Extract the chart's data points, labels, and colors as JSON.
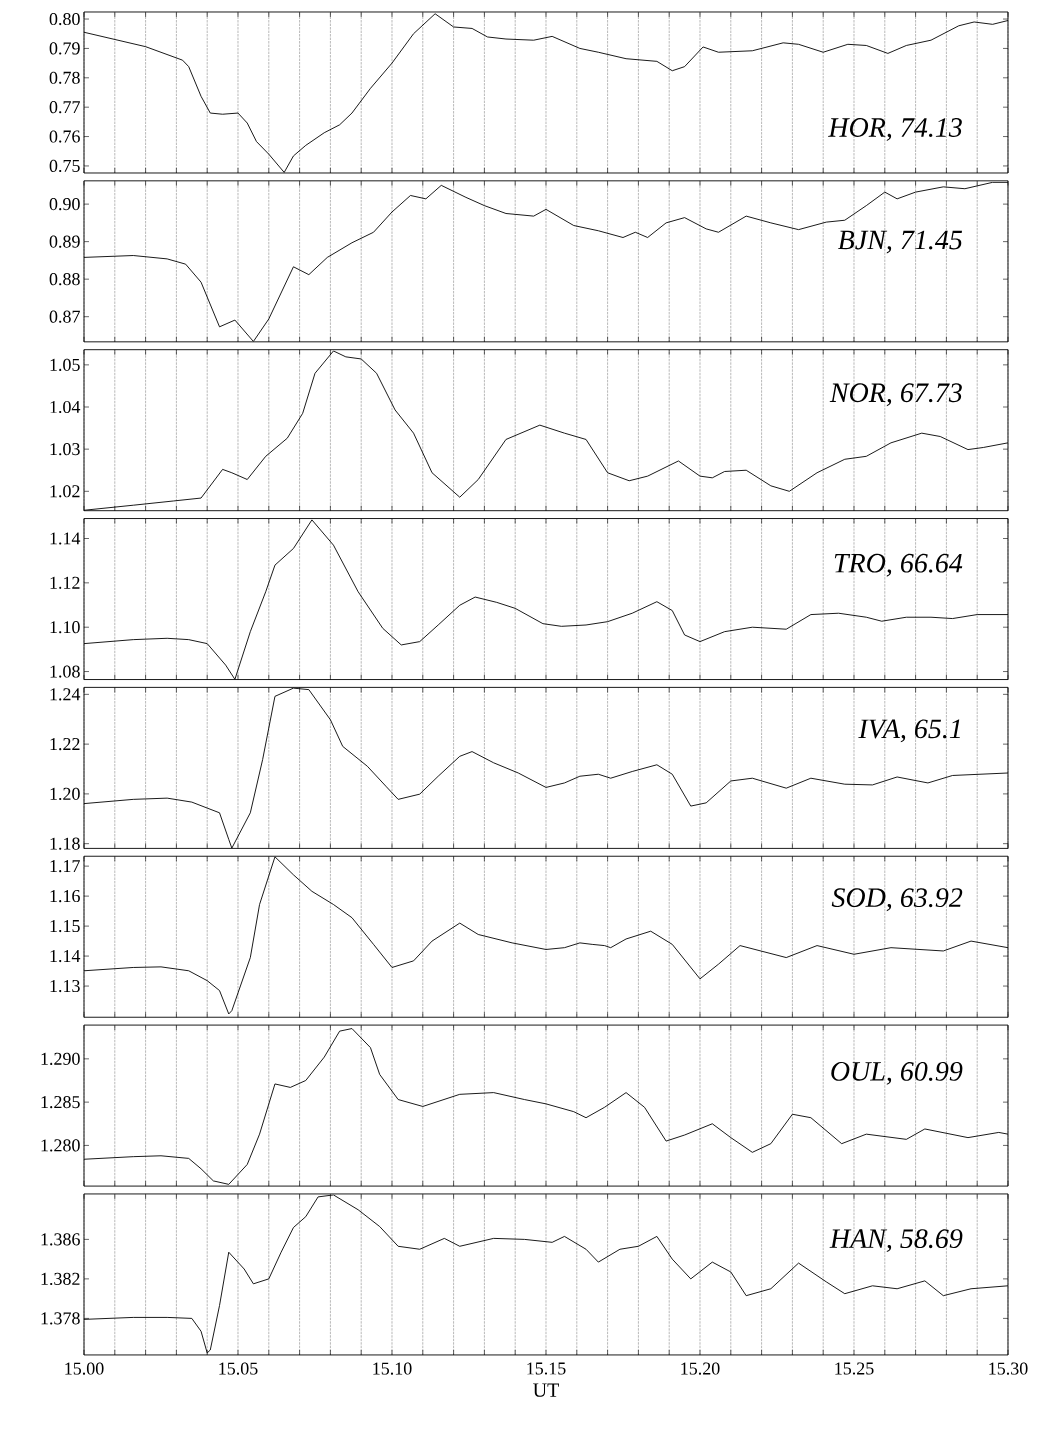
{
  "chart_data": [
    {
      "type": "line",
      "color": "#000000",
      "annotations": [
        "HOR, 74.13"
      ],
      "grid": "x",
      "tick_labels": "y",
      "xlim": [
        15.0,
        15.3
      ],
      "ylim": [
        0.7476,
        0.8024
      ],
      "xticks": [
        15.0,
        15.01,
        15.02,
        15.03,
        15.04,
        15.05,
        15.06,
        15.07,
        15.08,
        15.09,
        15.1,
        15.11,
        15.12,
        15.13,
        15.14,
        15.15,
        15.16,
        15.17,
        15.18,
        15.19,
        15.2,
        15.21,
        15.22,
        15.23,
        15.24,
        15.25,
        15.26,
        15.27,
        15.28,
        15.29,
        15.3
      ],
      "yticks": [
        {
          "value": 0.75,
          "label": "0.75"
        },
        {
          "value": 0.76,
          "label": "0.76"
        },
        {
          "value": 0.77,
          "label": "0.77"
        },
        {
          "value": 0.78,
          "label": "0.78"
        },
        {
          "value": 0.79,
          "label": "0.79"
        },
        {
          "value": 0.8,
          "label": "0.80"
        }
      ],
      "x": [
        15.0,
        15.02,
        15.032,
        15.034,
        15.038,
        15.041,
        15.045,
        15.05,
        15.053,
        15.056,
        15.06,
        15.065,
        15.068,
        15.072,
        15.078,
        15.083,
        15.087,
        15.093,
        15.1,
        15.107,
        15.114,
        15.12,
        15.126,
        15.131,
        15.137,
        15.146,
        15.152,
        15.161,
        15.167,
        15.176,
        15.186,
        15.191,
        15.195,
        15.201,
        15.206,
        15.217,
        15.227,
        15.232,
        15.24,
        15.248,
        15.254,
        15.261,
        15.267,
        15.275,
        15.284,
        15.289,
        15.295,
        15.3
      ],
      "values": [
        0.7955,
        0.7906,
        0.786,
        0.7838,
        0.7737,
        0.768,
        0.7676,
        0.768,
        0.7646,
        0.7583,
        0.754,
        0.7478,
        0.7534,
        0.757,
        0.7613,
        0.764,
        0.768,
        0.7764,
        0.785,
        0.795,
        0.8018,
        0.7973,
        0.7968,
        0.7939,
        0.7932,
        0.7928,
        0.7941,
        0.79,
        0.7887,
        0.7865,
        0.7856,
        0.7824,
        0.7838,
        0.7905,
        0.7887,
        0.7892,
        0.7919,
        0.7914,
        0.7887,
        0.7914,
        0.791,
        0.7883,
        0.791,
        0.7928,
        0.7977,
        0.799,
        0.7982,
        0.7995
      ]
    },
    {
      "type": "line",
      "color": "#000000",
      "annotations": [
        "BJN, 71.45"
      ],
      "grid": "x",
      "tick_labels": "y",
      "xlim": [
        15.0,
        15.3
      ],
      "ylim": [
        0.8633,
        0.9062
      ],
      "xticks": [
        15.0,
        15.01,
        15.02,
        15.03,
        15.04,
        15.05,
        15.06,
        15.07,
        15.08,
        15.09,
        15.1,
        15.11,
        15.12,
        15.13,
        15.14,
        15.15,
        15.16,
        15.17,
        15.18,
        15.19,
        15.2,
        15.21,
        15.22,
        15.23,
        15.24,
        15.25,
        15.26,
        15.27,
        15.28,
        15.29,
        15.3
      ],
      "yticks": [
        {
          "value": 0.87,
          "label": "0.87"
        },
        {
          "value": 0.88,
          "label": "0.88"
        },
        {
          "value": 0.89,
          "label": "0.89"
        },
        {
          "value": 0.9,
          "label": "0.90"
        }
      ],
      "x": [
        15.0,
        15.016,
        15.027,
        15.033,
        15.038,
        15.044,
        15.049,
        15.055,
        15.06,
        15.068,
        15.073,
        15.079,
        15.087,
        15.094,
        15.1,
        15.106,
        15.111,
        15.116,
        15.124,
        15.13,
        15.137,
        15.146,
        15.15,
        15.159,
        15.167,
        15.175,
        15.179,
        15.183,
        15.189,
        15.195,
        15.202,
        15.206,
        15.215,
        15.223,
        15.232,
        15.241,
        15.247,
        15.254,
        15.26,
        15.264,
        15.27,
        15.279,
        15.286,
        15.295,
        15.3
      ],
      "values": [
        0.8858,
        0.8863,
        0.8854,
        0.884,
        0.8792,
        0.8673,
        0.8691,
        0.8634,
        0.8694,
        0.8833,
        0.8812,
        0.8858,
        0.8897,
        0.8925,
        0.8979,
        0.9023,
        0.9014,
        0.905,
        0.9018,
        0.8996,
        0.8975,
        0.8968,
        0.8986,
        0.8943,
        0.8929,
        0.8911,
        0.8925,
        0.8911,
        0.895,
        0.8964,
        0.8934,
        0.8925,
        0.8968,
        0.895,
        0.8932,
        0.8952,
        0.8957,
        0.8996,
        0.9032,
        0.9014,
        0.9032,
        0.9046,
        0.9041,
        0.9058,
        0.9058
      ]
    },
    {
      "type": "line",
      "color": "#000000",
      "annotations": [
        "NOR, 67.73"
      ],
      "grid": "x",
      "tick_labels": "y",
      "xlim": [
        15.0,
        15.3
      ],
      "ylim": [
        1.0154,
        1.0536
      ],
      "xticks": [
        15.0,
        15.01,
        15.02,
        15.03,
        15.04,
        15.05,
        15.06,
        15.07,
        15.08,
        15.09,
        15.1,
        15.11,
        15.12,
        15.13,
        15.14,
        15.15,
        15.16,
        15.17,
        15.18,
        15.19,
        15.2,
        15.21,
        15.22,
        15.23,
        15.24,
        15.25,
        15.26,
        15.27,
        15.28,
        15.29,
        15.3
      ],
      "yticks": [
        {
          "value": 1.02,
          "label": "1.02"
        },
        {
          "value": 1.03,
          "label": "1.03"
        },
        {
          "value": 1.04,
          "label": "1.04"
        },
        {
          "value": 1.05,
          "label": "1.05"
        }
      ],
      "x": [
        15.0,
        15.016,
        15.029,
        15.038,
        15.045,
        15.048,
        15.053,
        15.059,
        15.066,
        15.071,
        15.075,
        15.081,
        15.085,
        15.09,
        15.095,
        15.101,
        15.107,
        15.113,
        15.122,
        15.128,
        15.137,
        15.148,
        15.156,
        15.163,
        15.17,
        15.177,
        15.183,
        15.193,
        15.2,
        15.204,
        15.208,
        15.215,
        15.223,
        15.229,
        15.238,
        15.247,
        15.254,
        15.262,
        15.272,
        15.278,
        15.287,
        15.292,
        15.3
      ],
      "values": [
        1.0155,
        1.0167,
        1.0177,
        1.0184,
        1.0252,
        1.0244,
        1.0228,
        1.0283,
        1.0326,
        1.0385,
        1.048,
        1.0533,
        1.0519,
        1.0514,
        1.048,
        1.0393,
        1.0338,
        1.0244,
        1.0186,
        1.0228,
        1.0323,
        1.0357,
        1.0338,
        1.0323,
        1.0244,
        1.0225,
        1.0236,
        1.0272,
        1.0236,
        1.0232,
        1.0247,
        1.025,
        1.0213,
        1.02,
        1.0244,
        1.0276,
        1.0283,
        1.0315,
        1.0338,
        1.033,
        1.0299,
        1.0304,
        1.0315
      ]
    },
    {
      "type": "line",
      "color": "#000000",
      "annotations": [
        "TRO, 66.64"
      ],
      "grid": "x",
      "tick_labels": "y",
      "xlim": [
        15.0,
        15.3
      ],
      "ylim": [
        1.0764,
        1.149
      ],
      "xticks": [
        15.0,
        15.01,
        15.02,
        15.03,
        15.04,
        15.05,
        15.06,
        15.07,
        15.08,
        15.09,
        15.1,
        15.11,
        15.12,
        15.13,
        15.14,
        15.15,
        15.16,
        15.17,
        15.18,
        15.19,
        15.2,
        15.21,
        15.22,
        15.23,
        15.24,
        15.25,
        15.26,
        15.27,
        15.28,
        15.29,
        15.3
      ],
      "yticks": [
        {
          "value": 1.08,
          "label": "1.08"
        },
        {
          "value": 1.1,
          "label": "1.10"
        },
        {
          "value": 1.12,
          "label": "1.12"
        },
        {
          "value": 1.14,
          "label": "1.14"
        }
      ],
      "x": [
        15.0,
        15.016,
        15.027,
        15.034,
        15.04,
        15.046,
        15.049,
        15.054,
        15.059,
        15.062,
        15.068,
        15.074,
        15.081,
        15.089,
        15.097,
        15.103,
        15.109,
        15.115,
        15.122,
        15.127,
        15.134,
        15.14,
        15.149,
        15.155,
        15.163,
        15.17,
        15.178,
        15.186,
        15.191,
        15.195,
        15.2,
        15.208,
        15.217,
        15.228,
        15.236,
        15.245,
        15.254,
        15.259,
        15.267,
        15.275,
        15.282,
        15.29,
        15.3
      ],
      "values": [
        1.0926,
        1.0944,
        1.095,
        1.0944,
        1.0926,
        1.0829,
        1.0765,
        1.098,
        1.116,
        1.128,
        1.1355,
        1.1484,
        1.137,
        1.116,
        1.0995,
        1.092,
        1.0935,
        1.101,
        1.1099,
        1.1136,
        1.1112,
        1.1085,
        1.1016,
        1.1004,
        1.101,
        1.1025,
        1.1063,
        1.1115,
        1.1075,
        1.0965,
        1.0935,
        1.098,
        1.1,
        1.0991,
        1.1057,
        1.1063,
        1.1045,
        1.1027,
        1.1045,
        1.1045,
        1.1039,
        1.1057,
        1.1057
      ]
    },
    {
      "type": "line",
      "color": "#000000",
      "annotations": [
        "IVA, 65.1"
      ],
      "grid": "x",
      "tick_labels": "y",
      "xlim": [
        15.0,
        15.3
      ],
      "ylim": [
        1.1781,
        1.2428
      ],
      "xticks": [
        15.0,
        15.01,
        15.02,
        15.03,
        15.04,
        15.05,
        15.06,
        15.07,
        15.08,
        15.09,
        15.1,
        15.11,
        15.12,
        15.13,
        15.14,
        15.15,
        15.16,
        15.17,
        15.18,
        15.19,
        15.2,
        15.21,
        15.22,
        15.23,
        15.24,
        15.25,
        15.26,
        15.27,
        15.28,
        15.29,
        15.3
      ],
      "yticks": [
        {
          "value": 1.18,
          "label": "1.18"
        },
        {
          "value": 1.2,
          "label": "1.20"
        },
        {
          "value": 1.22,
          "label": "1.22"
        },
        {
          "value": 1.24,
          "label": "1.24"
        }
      ],
      "x": [
        15.0,
        15.016,
        15.027,
        15.035,
        15.04,
        15.044,
        15.047,
        15.048,
        15.054,
        15.058,
        15.062,
        15.068,
        15.073,
        15.08,
        15.084,
        15.092,
        15.098,
        15.102,
        15.109,
        15.115,
        15.122,
        15.126,
        15.133,
        15.141,
        15.15,
        15.156,
        15.161,
        15.167,
        15.171,
        15.178,
        15.186,
        15.191,
        15.197,
        15.202,
        15.21,
        15.217,
        15.228,
        15.236,
        15.247,
        15.256,
        15.264,
        15.274,
        15.282,
        15.3
      ],
      "values": [
        1.1961,
        1.1978,
        1.1983,
        1.1967,
        1.1943,
        1.1924,
        1.1817,
        1.1782,
        1.1924,
        1.2138,
        1.2392,
        1.2425,
        1.2419,
        1.2298,
        1.2191,
        1.2111,
        1.2031,
        1.1978,
        1.1999,
        1.2071,
        1.2151,
        1.217,
        1.2125,
        1.2084,
        1.2026,
        1.2044,
        1.2071,
        1.2079,
        1.2063,
        1.209,
        1.2117,
        1.2079,
        1.1951,
        1.1964,
        1.2052,
        1.2063,
        1.2023,
        1.2063,
        1.2039,
        1.2036,
        1.2068,
        1.2044,
        1.2074,
        1.2084
      ]
    },
    {
      "type": "line",
      "color": "#000000",
      "annotations": [
        "SOD, 63.92"
      ],
      "grid": "x",
      "tick_labels": "y",
      "xlim": [
        15.0,
        15.3
      ],
      "ylim": [
        1.1196,
        1.1733
      ],
      "xticks": [
        15.0,
        15.01,
        15.02,
        15.03,
        15.04,
        15.05,
        15.06,
        15.07,
        15.08,
        15.09,
        15.1,
        15.11,
        15.12,
        15.13,
        15.14,
        15.15,
        15.16,
        15.17,
        15.18,
        15.19,
        15.2,
        15.21,
        15.22,
        15.23,
        15.24,
        15.25,
        15.26,
        15.27,
        15.28,
        15.29,
        15.3
      ],
      "yticks": [
        {
          "value": 1.13,
          "label": "1.13"
        },
        {
          "value": 1.14,
          "label": "1.14"
        },
        {
          "value": 1.15,
          "label": "1.15"
        },
        {
          "value": 1.16,
          "label": "1.16"
        },
        {
          "value": 1.17,
          "label": "1.17"
        }
      ],
      "x": [
        15.0,
        15.016,
        15.025,
        15.034,
        15.04,
        15.044,
        15.047,
        15.048,
        15.054,
        15.057,
        15.062,
        15.068,
        15.074,
        15.081,
        15.087,
        15.094,
        15.1,
        15.107,
        15.113,
        15.122,
        15.128,
        15.139,
        15.15,
        15.156,
        15.161,
        15.165,
        15.169,
        15.171,
        15.176,
        15.184,
        15.191,
        15.2,
        15.206,
        15.213,
        15.228,
        15.238,
        15.25,
        15.262,
        15.279,
        15.288,
        15.3
      ],
      "values": [
        1.1351,
        1.1362,
        1.1364,
        1.1351,
        1.1318,
        1.1285,
        1.1207,
        1.1218,
        1.1395,
        1.1572,
        1.1731,
        1.1671,
        1.1616,
        1.1572,
        1.1528,
        1.1439,
        1.1362,
        1.1384,
        1.145,
        1.151,
        1.1472,
        1.1444,
        1.1422,
        1.1428,
        1.1444,
        1.1439,
        1.1435,
        1.1428,
        1.1457,
        1.1483,
        1.1439,
        1.1324,
        1.1373,
        1.1435,
        1.1395,
        1.1435,
        1.1406,
        1.1428,
        1.1417,
        1.145,
        1.1428
      ]
    },
    {
      "type": "line",
      "color": "#000000",
      "annotations": [
        "OUL, 60.99"
      ],
      "grid": "x",
      "tick_labels": "y",
      "xlim": [
        15.0,
        15.3
      ],
      "ylim": [
        1.2753,
        1.2939
      ],
      "xticks": [
        15.0,
        15.01,
        15.02,
        15.03,
        15.04,
        15.05,
        15.06,
        15.07,
        15.08,
        15.09,
        15.1,
        15.11,
        15.12,
        15.13,
        15.14,
        15.15,
        15.16,
        15.17,
        15.18,
        15.19,
        15.2,
        15.21,
        15.22,
        15.23,
        15.24,
        15.25,
        15.26,
        15.27,
        15.28,
        15.29,
        15.3
      ],
      "yticks": [
        {
          "value": 1.28,
          "label": "1.280"
        },
        {
          "value": 1.285,
          "label": "1.285"
        },
        {
          "value": 1.29,
          "label": "1.290"
        }
      ],
      "x": [
        15.0,
        15.016,
        15.025,
        15.034,
        15.038,
        15.042,
        15.047,
        15.053,
        15.057,
        15.062,
        15.067,
        15.072,
        15.078,
        15.083,
        15.087,
        15.093,
        15.096,
        15.102,
        15.11,
        15.122,
        15.133,
        15.143,
        15.15,
        15.159,
        15.163,
        15.169,
        15.176,
        15.182,
        15.189,
        15.195,
        15.204,
        15.21,
        15.217,
        15.223,
        15.23,
        15.236,
        15.246,
        15.254,
        15.267,
        15.273,
        15.287,
        15.297,
        15.3
      ],
      "values": [
        1.2784,
        1.2787,
        1.2788,
        1.2785,
        1.2773,
        1.2759,
        1.2755,
        1.2778,
        1.2813,
        1.2871,
        1.2867,
        1.2875,
        1.2902,
        1.2932,
        1.2935,
        1.2913,
        1.2882,
        1.2853,
        1.2845,
        1.2859,
        1.2861,
        1.2853,
        1.2848,
        1.2839,
        1.2832,
        1.2844,
        1.2861,
        1.2844,
        1.2805,
        1.2812,
        1.2825,
        1.2809,
        1.2792,
        1.2802,
        1.2836,
        1.2832,
        1.2802,
        1.2813,
        1.2807,
        1.2819,
        1.2809,
        1.2815,
        1.2813
      ]
    },
    {
      "type": "line",
      "color": "#000000",
      "annotations": [
        "HAN, 58.69"
      ],
      "grid": "x",
      "xlabel": "UT",
      "xlim": [
        15.0,
        15.3
      ],
      "ylim": [
        1.3743,
        1.3906
      ],
      "xticks": [
        {
          "value": 15.0,
          "label": "15.00"
        },
        {
          "value": 15.01,
          "label": null
        },
        {
          "value": 15.02,
          "label": null
        },
        {
          "value": 15.03,
          "label": null
        },
        {
          "value": 15.04,
          "label": null
        },
        {
          "value": 15.05,
          "label": "15.05"
        },
        {
          "value": 15.06,
          "label": null
        },
        {
          "value": 15.07,
          "label": null
        },
        {
          "value": 15.08,
          "label": null
        },
        {
          "value": 15.09,
          "label": null
        },
        {
          "value": 15.1,
          "label": "15.10"
        },
        {
          "value": 15.11,
          "label": null
        },
        {
          "value": 15.12,
          "label": null
        },
        {
          "value": 15.13,
          "label": null
        },
        {
          "value": 15.14,
          "label": null
        },
        {
          "value": 15.15,
          "label": "15.15"
        },
        {
          "value": 15.16,
          "label": null
        },
        {
          "value": 15.17,
          "label": null
        },
        {
          "value": 15.18,
          "label": null
        },
        {
          "value": 15.19,
          "label": null
        },
        {
          "value": 15.2,
          "label": "15.20"
        },
        {
          "value": 15.21,
          "label": null
        },
        {
          "value": 15.22,
          "label": null
        },
        {
          "value": 15.23,
          "label": null
        },
        {
          "value": 15.24,
          "label": null
        },
        {
          "value": 15.25,
          "label": "15.25"
        },
        {
          "value": 15.26,
          "label": null
        },
        {
          "value": 15.27,
          "label": null
        },
        {
          "value": 15.28,
          "label": null
        },
        {
          "value": 15.29,
          "label": null
        },
        {
          "value": 15.3,
          "label": "15.30"
        }
      ],
      "yticks": [
        {
          "value": 1.378,
          "label": "1.378"
        },
        {
          "value": 1.382,
          "label": "1.382"
        },
        {
          "value": 1.386,
          "label": "1.386"
        }
      ],
      "x": [
        15.0,
        15.016,
        15.027,
        15.035,
        15.038,
        15.04,
        15.041,
        15.044,
        15.047,
        15.052,
        15.055,
        15.06,
        15.064,
        15.068,
        15.072,
        15.076,
        15.081,
        15.089,
        15.096,
        15.102,
        15.109,
        15.117,
        15.122,
        15.133,
        15.143,
        15.152,
        15.156,
        15.163,
        15.167,
        15.174,
        15.18,
        15.186,
        15.191,
        15.197,
        15.204,
        15.21,
        15.215,
        15.223,
        15.232,
        15.241,
        15.247,
        15.256,
        15.264,
        15.273,
        15.279,
        15.288,
        15.3
      ],
      "values": [
        1.3779,
        1.3781,
        1.3781,
        1.378,
        1.3767,
        1.3745,
        1.3748,
        1.3793,
        1.3847,
        1.383,
        1.3815,
        1.382,
        1.3847,
        1.3872,
        1.3883,
        1.3903,
        1.3905,
        1.389,
        1.3873,
        1.3853,
        1.385,
        1.3861,
        1.3853,
        1.3861,
        1.386,
        1.3857,
        1.3863,
        1.385,
        1.3837,
        1.385,
        1.3853,
        1.3863,
        1.384,
        1.382,
        1.3837,
        1.3827,
        1.3803,
        1.381,
        1.3836,
        1.3817,
        1.3805,
        1.3813,
        1.381,
        1.3818,
        1.3803,
        1.381,
        1.3813
      ]
    }
  ]
}
